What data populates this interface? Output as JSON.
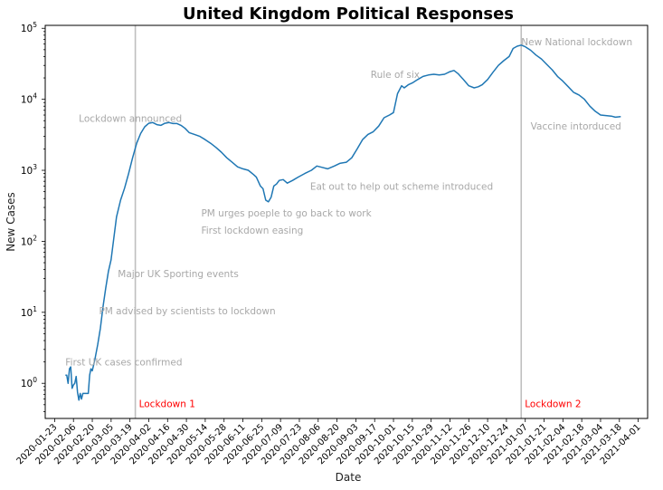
{
  "chart_data": {
    "type": "line",
    "title": "United Kingdom Political Responses",
    "xlabel": "Date",
    "ylabel": "New Cases",
    "y_scale": "log",
    "ylim": [
      0.32,
      110000
    ],
    "xlim": [
      "2020-01-16",
      "2021-04-08"
    ],
    "grid": false,
    "x_ticks": [
      "2020-01-23",
      "2020-02-06",
      "2020-02-20",
      "2020-03-05",
      "2020-03-19",
      "2020-04-02",
      "2020-04-16",
      "2020-04-30",
      "2020-05-14",
      "2020-05-28",
      "2020-06-11",
      "2020-06-25",
      "2020-07-09",
      "2020-07-23",
      "2020-08-06",
      "2020-08-20",
      "2020-09-03",
      "2020-09-17",
      "2020-10-01",
      "2020-10-15",
      "2020-10-29",
      "2020-11-12",
      "2020-11-26",
      "2020-12-10",
      "2020-12-24",
      "2021-01-07",
      "2021-01-21",
      "2021-02-04",
      "2021-02-18",
      "2021-03-04",
      "2021-03-18",
      "2021-04-01"
    ],
    "y_ticks": [
      {
        "value": 1,
        "label_base": "10",
        "label_exp": "0"
      },
      {
        "value": 10,
        "label_base": "10",
        "label_exp": "1"
      },
      {
        "value": 100,
        "label_base": "10",
        "label_exp": "2"
      },
      {
        "value": 1000,
        "label_base": "10",
        "label_exp": "3"
      },
      {
        "value": 10000,
        "label_base": "10",
        "label_exp": "4"
      },
      {
        "value": 100000,
        "label_base": "10",
        "label_exp": "5"
      }
    ],
    "series": [
      {
        "color": "#1f77b4",
        "points": [
          [
            "2020-01-31",
            1.3
          ],
          [
            "2020-02-01",
            1.3
          ],
          [
            "2020-02-02",
            1.0
          ],
          [
            "2020-02-03",
            1.6
          ],
          [
            "2020-02-04",
            1.7
          ],
          [
            "2020-02-05",
            0.85
          ],
          [
            "2020-02-06",
            0.95
          ],
          [
            "2020-02-07",
            1.0
          ],
          [
            "2020-02-08",
            1.25
          ],
          [
            "2020-02-09",
            0.75
          ],
          [
            "2020-02-10",
            0.58
          ],
          [
            "2020-02-11",
            0.72
          ],
          [
            "2020-02-12",
            0.6
          ],
          [
            "2020-02-13",
            0.72
          ],
          [
            "2020-02-14",
            0.72
          ],
          [
            "2020-02-15",
            0.72
          ],
          [
            "2020-02-17",
            0.72
          ],
          [
            "2020-02-18",
            1.3
          ],
          [
            "2020-02-19",
            1.6
          ],
          [
            "2020-02-20",
            1.5
          ],
          [
            "2020-02-22",
            2.2
          ],
          [
            "2020-02-24",
            3.5
          ],
          [
            "2020-02-26",
            6
          ],
          [
            "2020-02-28",
            12
          ],
          [
            "2020-03-01",
            22
          ],
          [
            "2020-03-03",
            38
          ],
          [
            "2020-03-05",
            55
          ],
          [
            "2020-03-07",
            110
          ],
          [
            "2020-03-09",
            220
          ],
          [
            "2020-03-12",
            380
          ],
          [
            "2020-03-15",
            560
          ],
          [
            "2020-03-18",
            900
          ],
          [
            "2020-03-21",
            1500
          ],
          [
            "2020-03-24",
            2400
          ],
          [
            "2020-03-27",
            3300
          ],
          [
            "2020-03-30",
            4100
          ],
          [
            "2020-04-02",
            4600
          ],
          [
            "2020-04-05",
            4700
          ],
          [
            "2020-04-08",
            4400
          ],
          [
            "2020-04-11",
            4300
          ],
          [
            "2020-04-14",
            4600
          ],
          [
            "2020-04-17",
            4700
          ],
          [
            "2020-04-20",
            4550
          ],
          [
            "2020-04-23",
            4550
          ],
          [
            "2020-04-26",
            4300
          ],
          [
            "2020-04-29",
            3900
          ],
          [
            "2020-05-02",
            3400
          ],
          [
            "2020-05-06",
            3200
          ],
          [
            "2020-05-10",
            3000
          ],
          [
            "2020-05-14",
            2700
          ],
          [
            "2020-05-18",
            2400
          ],
          [
            "2020-05-22",
            2100
          ],
          [
            "2020-05-26",
            1800
          ],
          [
            "2020-05-30",
            1500
          ],
          [
            "2020-06-03",
            1300
          ],
          [
            "2020-06-07",
            1120
          ],
          [
            "2020-06-11",
            1050
          ],
          [
            "2020-06-15",
            1000
          ],
          [
            "2020-06-19",
            870
          ],
          [
            "2020-06-21",
            800
          ],
          [
            "2020-06-24",
            600
          ],
          [
            "2020-06-26",
            550
          ],
          [
            "2020-06-28",
            380
          ],
          [
            "2020-06-30",
            360
          ],
          [
            "2020-07-02",
            420
          ],
          [
            "2020-07-04",
            600
          ],
          [
            "2020-07-06",
            640
          ],
          [
            "2020-07-08",
            720
          ],
          [
            "2020-07-11",
            740
          ],
          [
            "2020-07-14",
            660
          ],
          [
            "2020-07-18",
            720
          ],
          [
            "2020-07-22",
            800
          ],
          [
            "2020-07-27",
            900
          ],
          [
            "2020-08-01",
            1000
          ],
          [
            "2020-08-05",
            1150
          ],
          [
            "2020-08-09",
            1100
          ],
          [
            "2020-08-13",
            1050
          ],
          [
            "2020-08-18",
            1150
          ],
          [
            "2020-08-22",
            1250
          ],
          [
            "2020-08-27",
            1300
          ],
          [
            "2020-08-31",
            1500
          ],
          [
            "2020-09-04",
            2000
          ],
          [
            "2020-09-08",
            2700
          ],
          [
            "2020-09-12",
            3200
          ],
          [
            "2020-09-16",
            3500
          ],
          [
            "2020-09-20",
            4200
          ],
          [
            "2020-09-24",
            5500
          ],
          [
            "2020-09-28",
            6000
          ],
          [
            "2020-10-01",
            6500
          ],
          [
            "2020-10-04",
            12000
          ],
          [
            "2020-10-07",
            15500
          ],
          [
            "2020-10-09",
            14500
          ],
          [
            "2020-10-12",
            16000
          ],
          [
            "2020-10-15",
            17000
          ],
          [
            "2020-10-19",
            19000
          ],
          [
            "2020-10-23",
            21000
          ],
          [
            "2020-10-27",
            22000
          ],
          [
            "2020-10-31",
            22500
          ],
          [
            "2020-11-04",
            22000
          ],
          [
            "2020-11-08",
            22500
          ],
          [
            "2020-11-12",
            24500
          ],
          [
            "2020-11-15",
            25500
          ],
          [
            "2020-11-18",
            23000
          ],
          [
            "2020-11-22",
            19000
          ],
          [
            "2020-11-26",
            15500
          ],
          [
            "2020-11-30",
            14500
          ],
          [
            "2020-12-03",
            15000
          ],
          [
            "2020-12-06",
            16000
          ],
          [
            "2020-12-10",
            19000
          ],
          [
            "2020-12-14",
            24000
          ],
          [
            "2020-12-18",
            30000
          ],
          [
            "2020-12-22",
            35000
          ],
          [
            "2020-12-26",
            40000
          ],
          [
            "2020-12-29",
            52000
          ],
          [
            "2021-01-01",
            56000
          ],
          [
            "2021-01-04",
            58000
          ],
          [
            "2021-01-07",
            55000
          ],
          [
            "2021-01-11",
            49000
          ],
          [
            "2021-01-15",
            42000
          ],
          [
            "2021-01-19",
            37000
          ],
          [
            "2021-01-23",
            31000
          ],
          [
            "2021-01-27",
            26000
          ],
          [
            "2021-01-31",
            21000
          ],
          [
            "2021-02-04",
            18000
          ],
          [
            "2021-02-08",
            15000
          ],
          [
            "2021-02-12",
            12500
          ],
          [
            "2021-02-16",
            11500
          ],
          [
            "2021-02-20",
            10000
          ],
          [
            "2021-02-24",
            8000
          ],
          [
            "2021-02-28",
            6800
          ],
          [
            "2021-03-04",
            6000
          ],
          [
            "2021-03-08",
            5900
          ],
          [
            "2021-03-12",
            5800
          ],
          [
            "2021-03-15",
            5600
          ],
          [
            "2021-03-19",
            5700
          ]
        ]
      }
    ],
    "vlines": [
      {
        "x": "2020-03-23",
        "label": "Lockdown 1",
        "label_color": "#ff0000",
        "y_label": 0.52
      },
      {
        "x": "2021-01-04",
        "label": "Lockdown 2",
        "label_color": "#ff0000",
        "y_label": 0.52
      }
    ],
    "annotations": [
      {
        "text": "First UK cases confirmed",
        "x": "2020-01-31",
        "y": 2.0
      },
      {
        "text": "PM advised by scientists to lockdown",
        "x": "2020-02-25",
        "y": 10.5
      },
      {
        "text": "Major UK Sporting events",
        "x": "2020-03-10",
        "y": 35
      },
      {
        "text": "Lockdown announced",
        "x": "2020-02-10",
        "y": 5400
      },
      {
        "text": "PM urges poeple to go back to work",
        "x": "2020-05-11",
        "y": 250
      },
      {
        "text": "First lockdown easing",
        "x": "2020-05-11",
        "y": 145
      },
      {
        "text": "Eat out to help out scheme introduced",
        "x": "2020-07-31",
        "y": 600
      },
      {
        "text": "Rule of six",
        "x": "2020-09-14",
        "y": 22500
      },
      {
        "text": "New National lockdown",
        "x": "2021-01-04",
        "y": 65000
      },
      {
        "text": "Vaccine intorduced",
        "x": "2021-01-11",
        "y": 4200
      }
    ],
    "annotation_color": "#a8a8a8",
    "vline_color": "#bfbfbf"
  }
}
